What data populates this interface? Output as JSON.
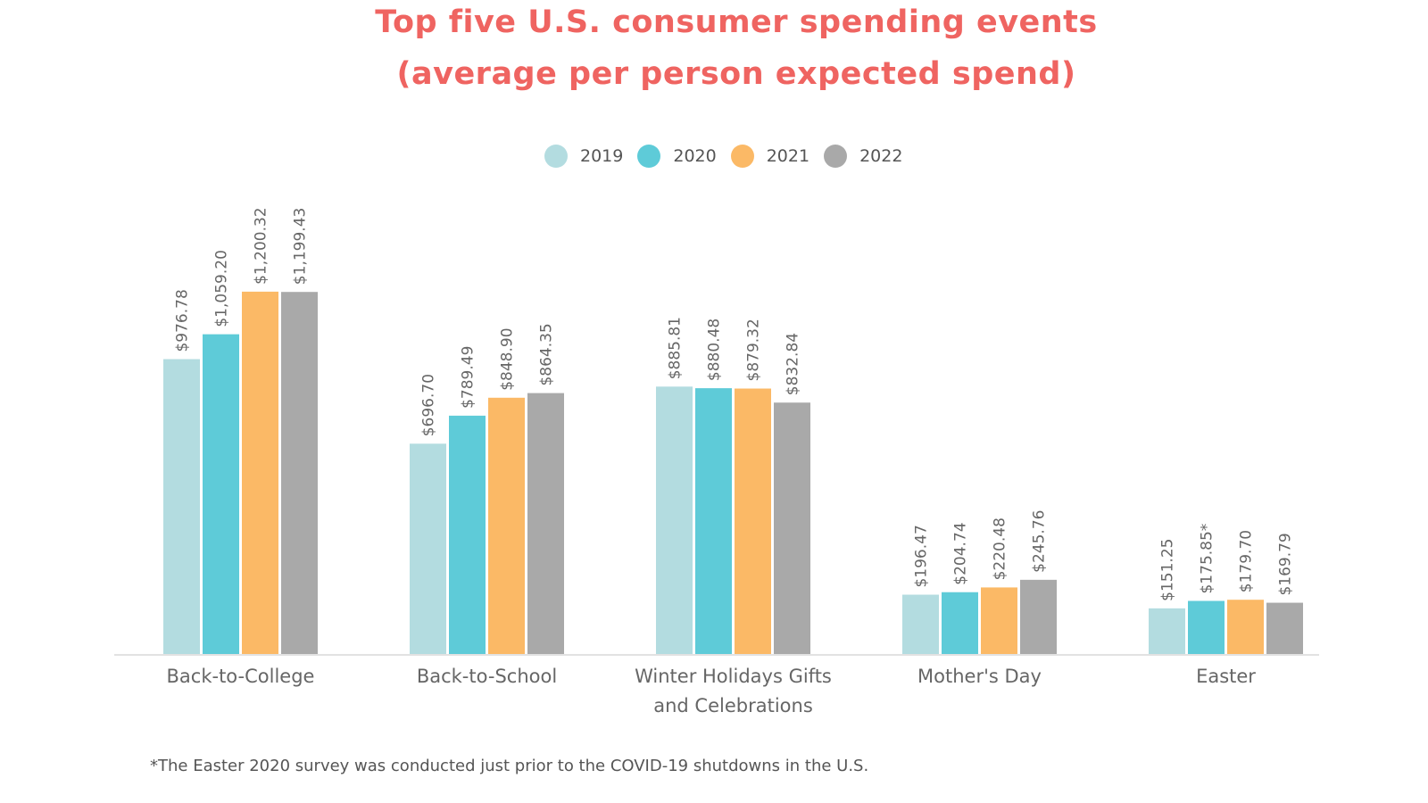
{
  "chart_data": {
    "type": "bar",
    "title": "Top five U.S. consumer spending events",
    "subtitle": "(average per person expected spend)",
    "categories": [
      [
        "Back-to-College"
      ],
      [
        "Back-to-School"
      ],
      [
        "Winter Holidays Gifts",
        "and Celebrations"
      ],
      [
        "Mother's Day"
      ],
      [
        "Easter"
      ]
    ],
    "series": [
      {
        "name": "2019",
        "color": "#b3dce0",
        "values": [
          976.78,
          696.7,
          885.81,
          196.47,
          151.25
        ],
        "labels": [
          "$976.78",
          "$696.70",
          "$885.81",
          "$196.47",
          "$151.25"
        ]
      },
      {
        "name": "2020",
        "color": "#5ecbd8",
        "values": [
          1059.2,
          789.49,
          880.48,
          204.74,
          175.85
        ],
        "labels": [
          "$1,059.20",
          "$789.49",
          "$880.48",
          "$204.74",
          "$175.85*"
        ]
      },
      {
        "name": "2021",
        "color": "#fbb966",
        "values": [
          1200.32,
          848.9,
          879.32,
          220.48,
          179.7
        ],
        "labels": [
          "$1,200.32",
          "$848.90",
          "$879.32",
          "$220.48",
          "$179.70"
        ]
      },
      {
        "name": "2022",
        "color": "#a9a9a9",
        "values": [
          1199.43,
          864.35,
          832.84,
          245.76,
          169.79
        ],
        "labels": [
          "$1,199.43",
          "$864.35",
          "$832.84",
          "$245.76",
          "$169.79"
        ]
      }
    ],
    "legend_position": "top-center",
    "grid": false,
    "ylim": [
      0,
      1200.32
    ],
    "footnote": "*The Easter 2020 survey was conducted just prior to the COVID-19 shutdowns in the U.S."
  }
}
